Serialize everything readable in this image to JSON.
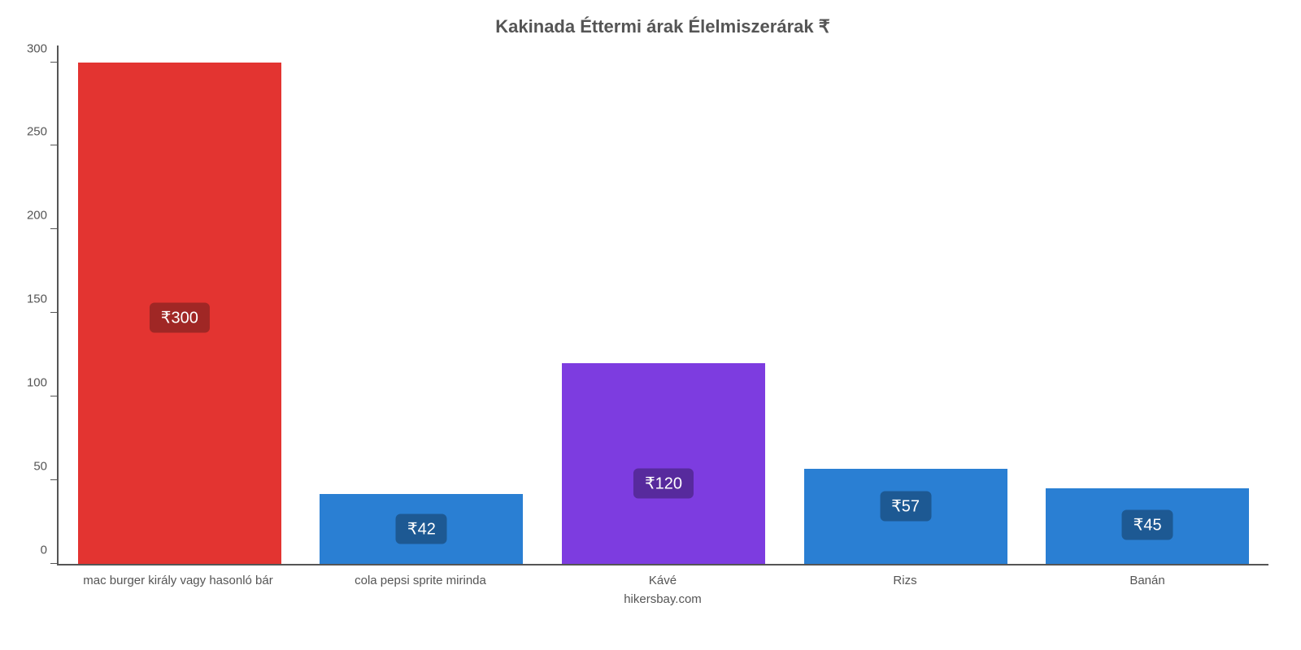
{
  "chart": {
    "type": "bar",
    "title": "Kakinada Éttermi árak Élelmiszerárak ₹",
    "title_fontsize": 22,
    "title_color": "#555555",
    "footer": "hikersbay.com",
    "footer_fontsize": 15,
    "footer_color": "#555555",
    "background_color": "#ffffff",
    "axis_color": "#555555",
    "y": {
      "min": 0,
      "max": 310,
      "ticks": [
        0,
        50,
        100,
        150,
        200,
        250,
        300
      ],
      "label_fontsize": 15,
      "label_color": "#555555"
    },
    "x": {
      "label_fontsize": 15,
      "label_color": "#555555"
    },
    "bar_width_ratio": 0.84,
    "value_badge": {
      "fontsize": 20,
      "text_color": "#ffffff",
      "radius": 6
    },
    "items": [
      {
        "category": "mac burger király vagy hasonló bár",
        "value": 300,
        "value_label": "₹300",
        "bar_color": "#e33431",
        "badge_color": "#a02725"
      },
      {
        "category": "cola pepsi sprite mirinda",
        "value": 42,
        "value_label": "₹42",
        "bar_color": "#2a7fd3",
        "badge_color": "#1d5993"
      },
      {
        "category": "Kávé",
        "value": 120,
        "value_label": "₹120",
        "bar_color": "#7d3ce0",
        "badge_color": "#572a9d"
      },
      {
        "category": "Rizs",
        "value": 57,
        "value_label": "₹57",
        "bar_color": "#2a7fd3",
        "badge_color": "#1d5993"
      },
      {
        "category": "Banán",
        "value": 45,
        "value_label": "₹45",
        "bar_color": "#2a7fd3",
        "badge_color": "#1d5993"
      }
    ]
  }
}
